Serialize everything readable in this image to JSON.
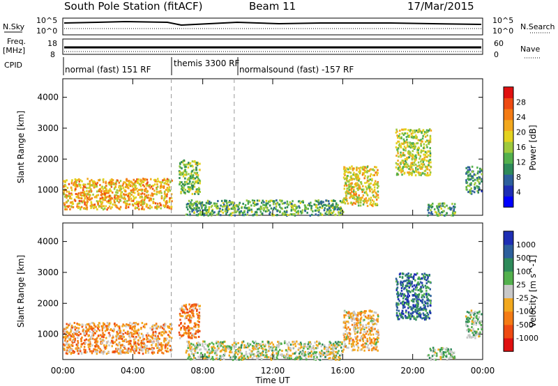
{
  "header": {
    "station": "South Pole Station (fitACF)",
    "beam": "Beam 11",
    "date": "17/Mar/2015"
  },
  "top_panels": {
    "nsky_label": "N.Sky",
    "nsearch_label": "N.Search",
    "nsky_ticks": [
      "10^5",
      "10^0"
    ],
    "nsearch_ticks": [
      "10^5",
      "10^0"
    ],
    "freq_label": "Freq.",
    "freq_unit": "[MHz]",
    "freq_ticks": [
      "18",
      "8"
    ],
    "nave_label": "Nave",
    "nave_ticks": [
      "60",
      "0"
    ],
    "cpid_label": "CPID",
    "cpid_segments": [
      {
        "label": "normal (fast) 151 RF",
        "start_hour": 0
      },
      {
        "label": "themis 3300 RF",
        "start_hour": 6.2
      },
      {
        "label": "normalsound (fast) -157 RF",
        "start_hour": 9.8
      }
    ]
  },
  "chart_data": [
    {
      "type": "heatmap",
      "panel": "power",
      "ylabel": "Slant Range [km]",
      "y_ticks": [
        1000,
        2000,
        3000,
        4000
      ],
      "ylim": [
        180,
        4600
      ],
      "x_ticks": [
        "00:00",
        "04:00",
        "08:00",
        "12:00",
        "16:00",
        "20:00",
        "00:00"
      ],
      "xlim_hours": [
        0,
        24
      ],
      "colorbar": {
        "label": "Power [dB]",
        "ticks": [
          "28",
          "24",
          "20",
          "16",
          "12",
          "8",
          "4"
        ],
        "range": [
          0,
          30
        ],
        "colors": [
          "#0000ff",
          "#1e2eb4",
          "#2d5f9c",
          "#2e8a5a",
          "#53b04d",
          "#9ec93d",
          "#e3d21f",
          "#f2a81e",
          "#f47b14",
          "#ee4a12",
          "#e01010"
        ]
      },
      "regions": [
        {
          "t0": 0.0,
          "t1": 6.2,
          "r0": 400,
          "r1": 1400,
          "value": 20
        },
        {
          "t0": 6.6,
          "t1": 7.8,
          "r0": 900,
          "r1": 2000,
          "value": 14
        },
        {
          "t0": 7.0,
          "t1": 16.0,
          "r0": 200,
          "r1": 700,
          "value": 12
        },
        {
          "t0": 16.0,
          "t1": 18.0,
          "r0": 500,
          "r1": 1800,
          "value": 18
        },
        {
          "t0": 19.0,
          "t1": 21.0,
          "r0": 1500,
          "r1": 3000,
          "value": 16
        },
        {
          "t0": 20.8,
          "t1": 22.4,
          "r0": 200,
          "r1": 600,
          "value": 12
        },
        {
          "t0": 23.0,
          "t1": 23.9,
          "r0": 900,
          "r1": 1800,
          "value": 10
        }
      ]
    },
    {
      "type": "heatmap",
      "panel": "velocity",
      "ylabel": "Slant Range [km]",
      "y_ticks": [
        1000,
        2000,
        3000,
        4000
      ],
      "ylim": [
        180,
        4600
      ],
      "x_ticks": [
        "00:00",
        "04:00",
        "08:00",
        "12:00",
        "16:00",
        "20:00",
        "00:00"
      ],
      "xlim_hours": [
        0,
        24
      ],
      "xlabel": "Time UT",
      "colorbar": {
        "label": "Velocity [m s^-1]",
        "ticks": [
          "1000",
          "500",
          "100",
          "25",
          "-25",
          "-100",
          "-500",
          "-1000"
        ],
        "range": [
          -1000,
          1000
        ],
        "colors": [
          "#e01010",
          "#ee4a12",
          "#f47b14",
          "#f2a81e",
          "#c8c8c8",
          "#53b04d",
          "#2e8a5a",
          "#2d5f9c",
          "#1e2eb4"
        ]
      },
      "regions": [
        {
          "t0": 0.0,
          "t1": 6.2,
          "r0": 400,
          "r1": 1400,
          "value": -300
        },
        {
          "t0": 6.6,
          "t1": 7.8,
          "r0": 900,
          "r1": 2000,
          "value": -400
        },
        {
          "t0": 7.0,
          "t1": 16.0,
          "r0": 200,
          "r1": 800,
          "value": 50
        },
        {
          "t0": 16.0,
          "t1": 18.0,
          "r0": 500,
          "r1": 1800,
          "value": -200
        },
        {
          "t0": 19.0,
          "t1": 21.0,
          "r0": 1500,
          "r1": 3000,
          "value": 600
        },
        {
          "t0": 20.8,
          "t1": 22.4,
          "r0": 200,
          "r1": 600,
          "value": 150
        },
        {
          "t0": 23.0,
          "t1": 23.9,
          "r0": 900,
          "r1": 1800,
          "value": 200
        }
      ]
    }
  ]
}
